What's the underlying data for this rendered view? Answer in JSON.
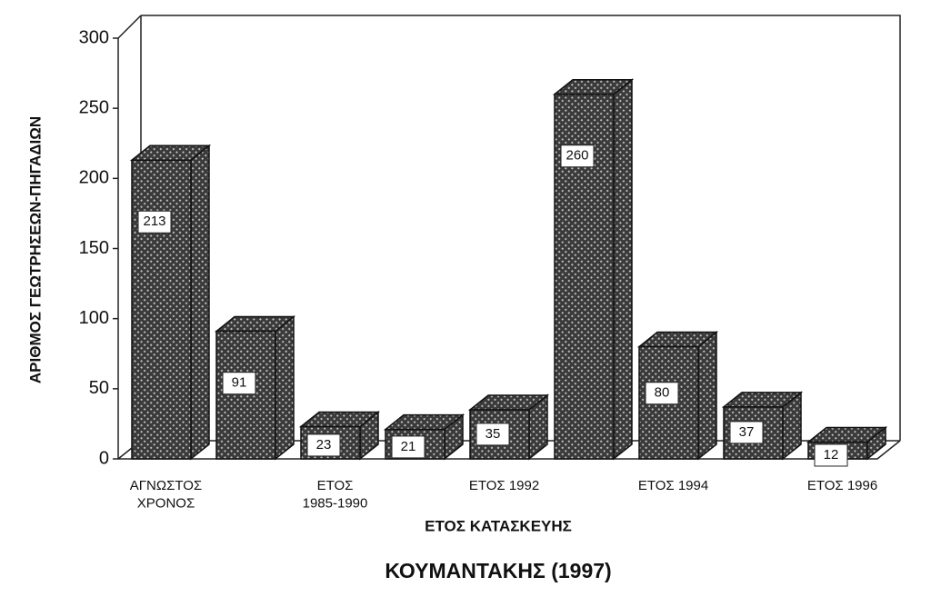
{
  "chart_data": {
    "type": "bar3d",
    "title": "ΚΟΥΜΑΝΤΑΚΗΣ (1997)",
    "x_label": "ΕΤΟΣ ΚΑΤΑΣΚΕΥΗΣ",
    "y_label": "ΑΡΙΘΜΟΣ ΓΕΩΤΡΗΣΕΩΝ-ΠΗΓΑΔΙΩΝ",
    "categories": [
      "ΑΓΝΩΣΤΟΣ\nΧΡΟΝΟΣ",
      null,
      "ΕΤΟΣ\n1985-1990",
      null,
      "ΕΤΟΣ 1992",
      null,
      "ΕΤΟΣ 1994",
      null,
      "ΕΤΟΣ 1996"
    ],
    "values": [
      213,
      91,
      23,
      21,
      35,
      260,
      80,
      37,
      12
    ],
    "color": "#3a3a3a",
    "ylim": [
      0,
      300
    ],
    "yticks": [
      0,
      50,
      100,
      150,
      200,
      250,
      300
    ]
  }
}
